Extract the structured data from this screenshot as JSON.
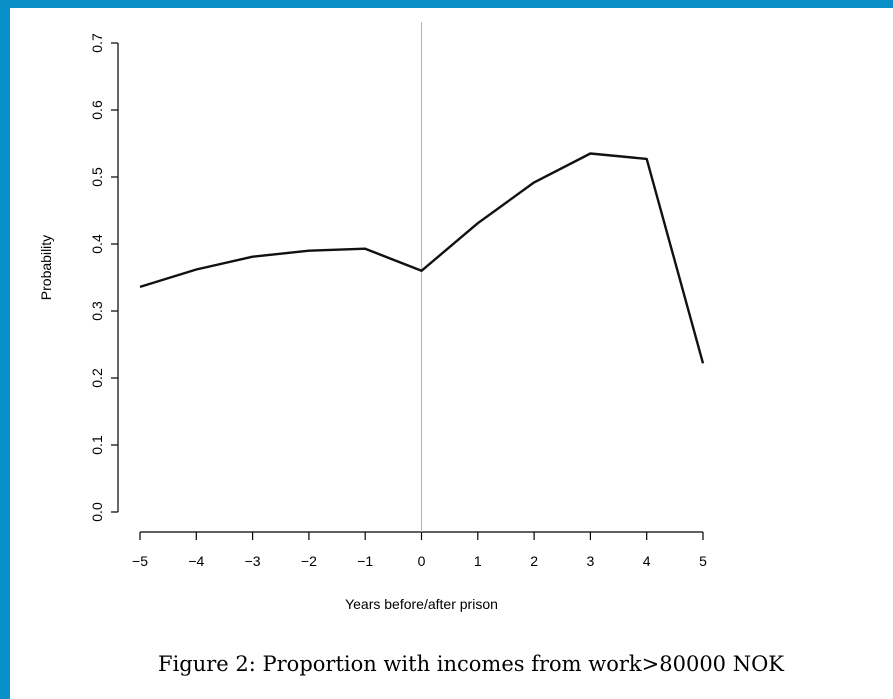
{
  "caption": "Figure 2: Proportion with incomes from work>80000 NOK",
  "chart_data": {
    "type": "line",
    "title": "",
    "xlabel": "Years before/after prison",
    "ylabel": "Probability",
    "x": [
      -5,
      -4,
      -3,
      -2,
      -1,
      0,
      1,
      2,
      3,
      4,
      5
    ],
    "series": [
      {
        "values": [
          0.336,
          0.362,
          0.381,
          0.39,
          0.393,
          0.36,
          0.431,
          0.492,
          0.535,
          0.527,
          0.222
        ]
      }
    ],
    "xlim": [
      -5,
      5
    ],
    "ylim": [
      0,
      0.7
    ],
    "x_ticks": [
      "−5",
      "−4",
      "−3",
      "−2",
      "−1",
      "0",
      "1",
      "2",
      "3",
      "4",
      "5"
    ],
    "y_ticks": [
      "0.0",
      "0.1",
      "0.2",
      "0.3",
      "0.4",
      "0.5",
      "0.6",
      "0.7"
    ],
    "vertical_reference_line": 0,
    "reference_line_color": "#b8b8b8",
    "line_color": "#111111",
    "grid": false,
    "legend": "none"
  }
}
